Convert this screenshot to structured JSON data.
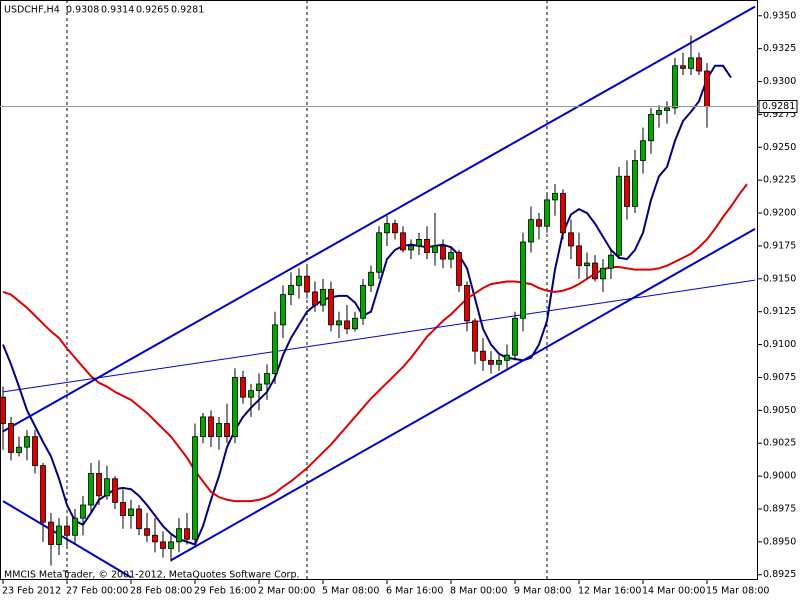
{
  "chart_data": {
    "type": "candlestick",
    "title": "USDCHF,H4",
    "footer": "MMCIS MetaTrader, © 2001-2012, MetaQuotes Software Corp.",
    "categories": [
      "23 Feb 2012",
      null,
      null,
      null,
      null,
      null,
      null,
      null,
      "27 Feb 00:00",
      null,
      null,
      null,
      null,
      null,
      null,
      null,
      "28 Feb 08:00",
      null,
      null,
      null,
      null,
      null,
      null,
      null,
      "29 Feb 16:00",
      null,
      null,
      null,
      null,
      null,
      null,
      null,
      "2 Mar 00:00",
      null,
      null,
      null,
      null,
      null,
      null,
      null,
      "5 Mar 08:00",
      null,
      null,
      null,
      null,
      null,
      null,
      null,
      "6 Mar 16:00",
      null,
      null,
      null,
      null,
      null,
      null,
      null,
      "8 Mar 00:00",
      null,
      null,
      null,
      null,
      null,
      null,
      null,
      "9 Mar 08:00",
      null,
      null,
      null,
      null,
      null,
      null,
      null,
      "12 Mar 16:00",
      null,
      null,
      null,
      null,
      null,
      null,
      null,
      "14 Mar 00:00",
      null,
      null,
      null,
      null,
      null,
      null,
      null,
      "15 Mar 08:00",
      null,
      null,
      null,
      null,
      null
    ],
    "open": [
      0.906,
      0.904,
      0.9018,
      0.9022,
      0.903,
      0.9008,
      0.8965,
      0.8948,
      0.8962,
      0.8955,
      0.8968,
      0.8978,
      0.9002,
      0.8985,
      0.8998,
      0.898,
      0.897,
      0.8975,
      0.896,
      0.8955,
      0.895,
      0.8945,
      0.895,
      0.896,
      0.8952,
      0.903,
      0.9045,
      0.903,
      0.904,
      0.903,
      0.9075,
      0.906,
      0.9065,
      0.907,
      0.9078,
      0.9115,
      0.9138,
      0.9145,
      0.9152,
      0.914,
      0.913,
      0.9142,
      0.9115,
      0.9118,
      0.9112,
      0.912,
      0.9145,
      0.9155,
      0.9185,
      0.9192,
      0.9185,
      0.9172,
      0.9175,
      0.918,
      0.917,
      0.9175,
      0.9165,
      0.917,
      0.9145,
      0.9118,
      0.9095,
      0.9088,
      0.9085,
      0.9088,
      0.9092,
      0.912,
      0.9178,
      0.9195,
      0.919,
      0.921,
      0.9215,
      0.9185,
      0.9175,
      0.916,
      0.9162,
      0.915,
      0.9158,
      0.9168,
      0.9228,
      0.9205,
      0.924,
      0.9255,
      0.9275,
      0.9278,
      0.928,
      0.9312,
      0.931,
      0.9318,
      0.9308,
      null,
      null,
      null,
      null,
      null
    ],
    "high": [
      0.9068,
      0.9045,
      0.903,
      0.9035,
      0.9035,
      0.901,
      0.8972,
      0.8968,
      0.8968,
      0.8975,
      0.8985,
      0.901,
      0.9012,
      0.9008,
      0.9,
      0.899,
      0.8982,
      0.8978,
      0.8972,
      0.8968,
      0.8958,
      0.8955,
      0.8968,
      0.8972,
      0.904,
      0.9048,
      0.905,
      0.9045,
      0.9055,
      0.9082,
      0.908,
      0.907,
      0.9078,
      0.9085,
      0.9125,
      0.9145,
      0.9155,
      0.9158,
      0.916,
      0.9148,
      0.915,
      0.9148,
      0.9125,
      0.913,
      0.9125,
      0.915,
      0.916,
      0.919,
      0.9198,
      0.9195,
      0.919,
      0.918,
      0.9185,
      0.919,
      0.92,
      0.918,
      0.9175,
      0.9172,
      0.9148,
      0.912,
      0.9105,
      0.9095,
      0.9092,
      0.91,
      0.9125,
      0.9185,
      0.9205,
      0.92,
      0.9215,
      0.9222,
      0.9218,
      0.9195,
      0.9185,
      0.917,
      0.9168,
      0.9165,
      0.9172,
      0.9235,
      0.924,
      0.9248,
      0.9265,
      0.928,
      0.9282,
      0.9285,
      0.9318,
      0.9322,
      0.9335,
      0.9322,
      0.9314,
      null,
      null,
      null,
      null,
      null
    ],
    "low": [
      0.902,
      0.9012,
      0.9015,
      0.9012,
      0.9002,
      0.895,
      0.8932,
      0.894,
      0.8945,
      0.8948,
      0.8955,
      0.8972,
      0.8978,
      0.8982,
      0.8975,
      0.896,
      0.896,
      0.8955,
      0.895,
      0.8942,
      0.8938,
      0.8935,
      0.8942,
      0.8948,
      0.8948,
      0.9025,
      0.9022,
      0.902,
      0.9025,
      0.9025,
      0.9055,
      0.9045,
      0.905,
      0.9058,
      0.907,
      0.9105,
      0.913,
      0.9135,
      0.9135,
      0.9125,
      0.9125,
      0.911,
      0.9105,
      0.9108,
      0.911,
      0.9115,
      0.914,
      0.915,
      0.9175,
      0.918,
      0.917,
      0.9165,
      0.9168,
      0.9165,
      0.916,
      0.9158,
      0.9158,
      0.914,
      0.911,
      0.9085,
      0.908,
      0.9078,
      0.908,
      0.9082,
      0.9088,
      0.911,
      0.917,
      0.918,
      0.9185,
      0.9198,
      0.918,
      0.9165,
      0.915,
      0.915,
      0.9148,
      0.914,
      0.915,
      0.9165,
      0.9195,
      0.92,
      0.923,
      0.9245,
      0.9265,
      0.9268,
      0.9275,
      0.9305,
      0.9305,
      0.9305,
      0.9265,
      null,
      null,
      null,
      null,
      null
    ],
    "close": [
      0.904,
      0.9018,
      0.9022,
      0.903,
      0.9008,
      0.8965,
      0.8948,
      0.8962,
      0.8955,
      0.8968,
      0.8978,
      0.9002,
      0.8985,
      0.8998,
      0.898,
      0.897,
      0.8975,
      0.896,
      0.8955,
      0.895,
      0.8945,
      0.895,
      0.896,
      0.8952,
      0.903,
      0.9045,
      0.903,
      0.904,
      0.903,
      0.9075,
      0.906,
      0.9065,
      0.907,
      0.9078,
      0.9115,
      0.9138,
      0.9145,
      0.9152,
      0.914,
      0.913,
      0.9142,
      0.9115,
      0.9118,
      0.9112,
      0.912,
      0.9145,
      0.9155,
      0.9185,
      0.9192,
      0.9185,
      0.9172,
      0.9175,
      0.918,
      0.917,
      0.9175,
      0.9165,
      0.917,
      0.9145,
      0.9118,
      0.9095,
      0.9088,
      0.9085,
      0.9088,
      0.9092,
      0.912,
      0.9178,
      0.9195,
      0.919,
      0.921,
      0.9215,
      0.9185,
      0.9175,
      0.916,
      0.9162,
      0.915,
      0.9158,
      0.9168,
      0.9228,
      0.9205,
      0.924,
      0.9255,
      0.9275,
      0.9278,
      0.928,
      0.9312,
      0.931,
      0.9318,
      0.9308,
      0.9281,
      null,
      null,
      null,
      null,
      null
    ],
    "up_color": "#00a800",
    "down_color": "#e00000",
    "series": [
      {
        "color": "#000080",
        "values": [
          0.91,
          0.9085,
          0.9068,
          0.905,
          0.9038,
          0.9026,
          0.9015,
          0.8998,
          0.8978,
          0.8966,
          0.8963,
          0.8972,
          0.8982,
          0.8986,
          0.899,
          0.8991,
          0.899,
          0.8985,
          0.8978,
          0.897,
          0.8962,
          0.8956,
          0.8952,
          0.895,
          0.8948,
          0.8962,
          0.8982,
          0.9,
          0.9022,
          0.9035,
          0.9045,
          0.9052,
          0.9058,
          0.9064,
          0.9075,
          0.9092,
          0.9105,
          0.9115,
          0.9125,
          0.913,
          0.9134,
          0.9136,
          0.9137,
          0.9137,
          0.9132,
          0.9122,
          0.9125,
          0.9145,
          0.9165,
          0.9172,
          0.9175,
          0.9176,
          0.9175,
          0.9174,
          0.9175,
          0.9176,
          0.9174,
          0.9168,
          0.9158,
          0.9135,
          0.9112,
          0.91,
          0.9093,
          0.909,
          0.9089,
          0.9088,
          0.909,
          0.91,
          0.9118,
          0.9157,
          0.9185,
          0.9199,
          0.9203,
          0.92,
          0.9192,
          0.9182,
          0.9172,
          0.9166,
          0.9165,
          0.9172,
          0.9185,
          0.921,
          0.9228,
          0.9235,
          0.9255,
          0.927,
          0.9277,
          0.9285,
          0.9302,
          0.9312,
          0.9312,
          0.9303,
          null,
          null
        ]
      },
      {
        "color": "#e00000",
        "values": [
          0.914,
          0.9138,
          0.9133,
          0.9128,
          0.9122,
          0.9116,
          0.911,
          0.9105,
          0.9097,
          0.909,
          0.9083,
          0.9076,
          0.9071,
          0.9068,
          0.9064,
          0.9061,
          0.9058,
          0.9053,
          0.9048,
          0.9042,
          0.9036,
          0.903,
          0.9022,
          0.9014,
          0.9004,
          0.8996,
          0.8988,
          0.8984,
          0.8982,
          0.8981,
          0.8981,
          0.8981,
          0.8982,
          0.8984,
          0.8987,
          0.8992,
          0.8996,
          0.9001,
          0.9006,
          0.9012,
          0.9018,
          0.9024,
          0.9031,
          0.9038,
          0.9045,
          0.9052,
          0.9059,
          0.9065,
          0.9071,
          0.9077,
          0.9083,
          0.909,
          0.9098,
          0.9106,
          0.9112,
          0.9118,
          0.9123,
          0.9129,
          0.9135,
          0.9139,
          0.9143,
          0.9146,
          0.9147,
          0.9148,
          0.9148,
          0.9147,
          0.9146,
          0.9143,
          0.9141,
          0.914,
          0.9141,
          0.9143,
          0.9146,
          0.915,
          0.9154,
          0.9157,
          0.9159,
          0.9159,
          0.9158,
          0.9157,
          0.9157,
          0.9157,
          0.9158,
          0.916,
          0.9163,
          0.9166,
          0.9169,
          0.9174,
          0.918,
          0.9188,
          0.9197,
          0.9205,
          0.9214,
          0.9222
        ]
      }
    ],
    "lines": [
      {
        "color": "#0000cc",
        "width": 2,
        "x": [
          0,
          94
        ],
        "values": [
          0.9034,
          0.9357
        ]
      },
      {
        "color": "#0000cc",
        "width": 2,
        "x": [
          21,
          94
        ],
        "values": [
          0.8936,
          0.9188
        ]
      },
      {
        "color": "#0000cc",
        "width": 2,
        "x": [
          0,
          16
        ],
        "values": [
          0.8981,
          0.8923
        ]
      },
      {
        "color": "#0000cc",
        "width": 1,
        "x": [
          0,
          94
        ],
        "values": [
          0.9064,
          0.9149
        ]
      }
    ],
    "ylim": [
      0.8921,
      0.9362
    ],
    "yticks": [
      {
        "value": 0.935,
        "label": "0.9350"
      },
      {
        "value": 0.9325,
        "label": "0.9325"
      },
      {
        "value": 0.93,
        "label": "0.9300"
      },
      {
        "value": 0.9275,
        "label": "0.9275"
      },
      {
        "value": 0.925,
        "label": "0.9250"
      },
      {
        "value": 0.9225,
        "label": "0.9225"
      },
      {
        "value": 0.92,
        "label": "0.9200"
      },
      {
        "value": 0.9175,
        "label": "0.9175"
      },
      {
        "value": 0.915,
        "label": "0.9150"
      },
      {
        "value": 0.9125,
        "label": "0.9125"
      },
      {
        "value": 0.91,
        "label": "0.9100"
      },
      {
        "value": 0.9075,
        "label": "0.9075"
      },
      {
        "value": 0.905,
        "label": "0.9050"
      },
      {
        "value": 0.9025,
        "label": "0.9025"
      },
      {
        "value": 0.9,
        "label": "0.9000"
      },
      {
        "value": 0.8975,
        "label": "0.8975"
      },
      {
        "value": 0.895,
        "label": "0.8950"
      },
      {
        "value": 0.8925,
        "label": "0.8925"
      }
    ]
  }
}
